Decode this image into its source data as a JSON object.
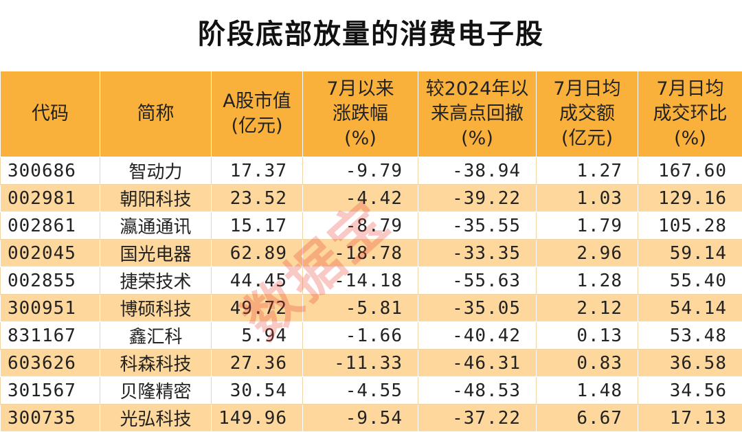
{
  "header": {
    "title": "阶段底部放量的消费电子股"
  },
  "table": {
    "columns": [
      "代码",
      "简称",
      "A股市值\n(亿元)",
      "7月以来\n涨跌幅\n(%)",
      "较2024年以\n来高点回撤\n(%)",
      "7月日均\n成交额\n(亿元)",
      "7月日均\n成交环比\n(%)"
    ],
    "rows": [
      [
        "300686",
        "智动力",
        "17.37",
        "-9.79",
        "-38.94",
        "1.27",
        "167.60"
      ],
      [
        "002981",
        "朝阳科技",
        "23.52",
        "-4.42",
        "-39.22",
        "1.03",
        "129.16"
      ],
      [
        "002861",
        "瀛通通讯",
        "15.17",
        "-8.79",
        "-35.55",
        "1.79",
        "105.28"
      ],
      [
        "002045",
        "国光电器",
        "62.89",
        "-18.78",
        "-33.35",
        "2.96",
        "59.14"
      ],
      [
        "002855",
        "捷荣技术",
        "44.45",
        "-14.18",
        "-55.63",
        "1.28",
        "55.40"
      ],
      [
        "300951",
        "博硕科技",
        "49.72",
        "-5.81",
        "-35.05",
        "2.12",
        "54.14"
      ],
      [
        "831167",
        "鑫汇科",
        "5.94",
        "-1.66",
        "-40.42",
        "0.13",
        "53.48"
      ],
      [
        "603626",
        "科森科技",
        "27.36",
        "-11.33",
        "-46.31",
        "0.83",
        "36.58"
      ],
      [
        "301567",
        "贝隆精密",
        "30.54",
        "-4.55",
        "-48.53",
        "1.48",
        "34.56"
      ],
      [
        "300735",
        "光弘科技",
        "149.96",
        "-9.54",
        "-37.22",
        "6.67",
        "17.13"
      ]
    ]
  },
  "watermark": "数据宝"
}
